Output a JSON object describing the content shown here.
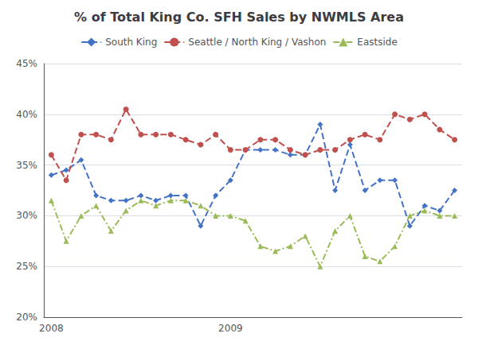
{
  "chart_data": {
    "type": "line",
    "title": "% of Total King Co. SFH Sales by NWMLS Area",
    "categories": [
      "2008",
      null,
      null,
      null,
      null,
      null,
      null,
      null,
      null,
      null,
      null,
      null,
      "2009",
      null,
      null,
      null,
      null,
      null,
      null,
      null,
      null,
      null,
      null,
      null,
      null,
      null,
      null,
      null
    ],
    "series": [
      {
        "name": "South King",
        "color": "#4472C4",
        "marker": "diamond",
        "line_style": "dashed",
        "values": [
          34.0,
          34.5,
          35.5,
          32.0,
          31.5,
          31.5,
          32.0,
          31.5,
          32.0,
          32.0,
          29.0,
          32.0,
          33.5,
          36.5,
          36.5,
          36.5,
          36.0,
          36.0,
          39.0,
          32.5,
          37.0,
          32.5,
          33.5,
          33.5,
          29.0,
          31.0,
          30.5,
          32.5
        ]
      },
      {
        "name": "Seattle / North King / Vashon",
        "color": "#C0504D",
        "marker": "circle",
        "line_style": "dashed",
        "values": [
          36.0,
          33.5,
          38.0,
          38.0,
          37.5,
          40.5,
          38.0,
          38.0,
          38.0,
          37.5,
          37.0,
          38.0,
          36.5,
          36.5,
          37.5,
          37.5,
          36.5,
          36.0,
          36.5,
          36.5,
          37.5,
          38.0,
          37.5,
          40.0,
          39.5,
          40.0,
          38.5,
          37.5
        ]
      },
      {
        "name": "Eastside",
        "color": "#9BBB59",
        "marker": "triangle",
        "line_style": "dashdot",
        "values": [
          31.5,
          27.5,
          30.0,
          31.0,
          28.5,
          30.5,
          31.5,
          31.0,
          31.5,
          31.5,
          31.0,
          30.0,
          30.0,
          29.5,
          27.0,
          26.5,
          27.0,
          28.0,
          25.0,
          28.5,
          30.0,
          26.0,
          25.5,
          27.0,
          30.0,
          30.5,
          30.0,
          30.0
        ]
      }
    ],
    "ylim": [
      20,
      45
    ],
    "yticks": [
      {
        "value": 20,
        "label": "20%"
      },
      {
        "value": 25,
        "label": "25%"
      },
      {
        "value": 30,
        "label": "30%"
      },
      {
        "value": 35,
        "label": "35%"
      },
      {
        "value": 40,
        "label": "40%"
      },
      {
        "value": 45,
        "label": "45%"
      }
    ],
    "grid": true,
    "legend": "top"
  }
}
